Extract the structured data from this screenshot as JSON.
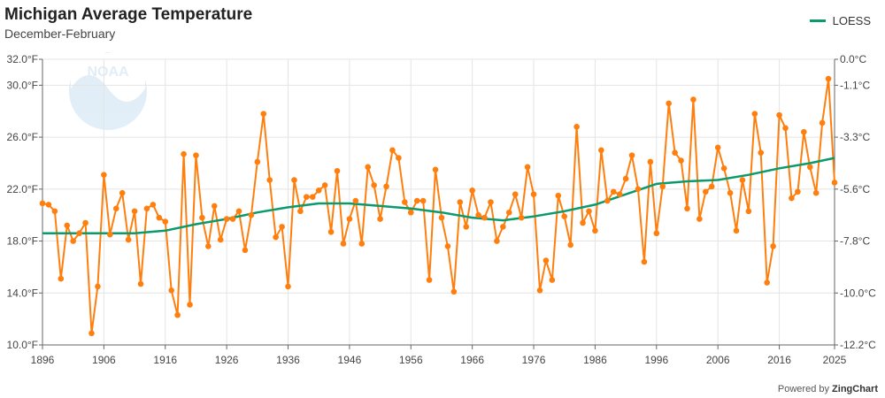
{
  "chart_data": {
    "type": "line",
    "title": "Michigan Average Temperature",
    "subtitle": "December-February",
    "legend": [
      "LOESS"
    ],
    "legend_placement": "top-right",
    "x_ticks": [
      "1896",
      "1906",
      "1916",
      "1926",
      "1936",
      "1946",
      "1956",
      "1966",
      "1976",
      "1986",
      "1996",
      "2006",
      "2016",
      "2025"
    ],
    "y_ticks_left": [
      "10.0°F",
      "14.0°F",
      "18.0°F",
      "22.0°F",
      "26.0°F",
      "30.0°F",
      "32.0°F"
    ],
    "y_ticks_right": [
      "-12.2°C",
      "-10.0°C",
      "-7.8°C",
      "-5.6°C",
      "-3.3°C",
      "-1.1°C",
      "0.0°C"
    ],
    "xlim": [
      1896,
      2025
    ],
    "ylim": [
      10,
      32
    ],
    "grid": true,
    "series": [
      {
        "color": "#ff7f0e",
        "x": [
          1896,
          1897,
          1898,
          1899,
          1900,
          1901,
          1902,
          1903,
          1904,
          1905,
          1906,
          1907,
          1908,
          1909,
          1910,
          1911,
          1912,
          1913,
          1914,
          1915,
          1916,
          1917,
          1918,
          1919,
          1920,
          1921,
          1922,
          1923,
          1924,
          1925,
          1926,
          1927,
          1928,
          1929,
          1930,
          1931,
          1932,
          1933,
          1934,
          1935,
          1936,
          1937,
          1938,
          1939,
          1940,
          1941,
          1942,
          1943,
          1944,
          1945,
          1946,
          1947,
          1948,
          1949,
          1950,
          1951,
          1952,
          1953,
          1954,
          1955,
          1956,
          1957,
          1958,
          1959,
          1960,
          1961,
          1962,
          1963,
          1964,
          1965,
          1966,
          1967,
          1968,
          1969,
          1970,
          1971,
          1972,
          1973,
          1974,
          1975,
          1976,
          1977,
          1978,
          1979,
          1980,
          1981,
          1982,
          1983,
          1984,
          1985,
          1986,
          1987,
          1988,
          1989,
          1990,
          1991,
          1992,
          1993,
          1994,
          1995,
          1996,
          1997,
          1998,
          1999,
          2000,
          2001,
          2002,
          2003,
          2004,
          2005,
          2006,
          2007,
          2008,
          2009,
          2010,
          2011,
          2012,
          2013,
          2014,
          2015,
          2016,
          2017,
          2018,
          2019,
          2020,
          2021,
          2022,
          2023,
          2024,
          2025
        ],
        "values": [
          20.9,
          20.8,
          20.3,
          15.1,
          19.2,
          18.0,
          18.6,
          19.4,
          10.9,
          14.5,
          23.1,
          18.5,
          20.5,
          21.7,
          18.1,
          20.3,
          14.7,
          20.5,
          20.8,
          19.8,
          19.5,
          14.2,
          12.3,
          24.7,
          13.1,
          24.6,
          19.8,
          17.6,
          20.7,
          18.1,
          19.7,
          19.7,
          20.3,
          17.3,
          20.0,
          24.1,
          27.8,
          22.7,
          18.3,
          19.1,
          14.5,
          22.7,
          20.3,
          21.4,
          21.4,
          21.9,
          22.3,
          18.7,
          23.4,
          17.8,
          19.7,
          21.1,
          17.8,
          23.7,
          22.3,
          19.7,
          22.2,
          25.0,
          24.4,
          21.0,
          20.2,
          21.1,
          21.1,
          15.0,
          23.5,
          19.8,
          17.6,
          14.1,
          21.0,
          19.1,
          21.9,
          20.0,
          19.8,
          21.0,
          18.0,
          19.1,
          20.2,
          21.6,
          19.8,
          23.7,
          21.6,
          14.2,
          16.5,
          15.0,
          21.5,
          19.9,
          17.7,
          26.8,
          19.4,
          20.3,
          18.8,
          25.0,
          21.1,
          21.8,
          21.6,
          22.8,
          24.6,
          22.0,
          16.4,
          24.1,
          18.6,
          22.2,
          28.6,
          24.8,
          24.2,
          20.5,
          28.9,
          19.7,
          21.8,
          22.2,
          25.2,
          23.6,
          21.7,
          18.8,
          22.7,
          20.3,
          27.8,
          24.8,
          14.8,
          17.6,
          27.7,
          26.7,
          21.3,
          21.8,
          26.4,
          23.7,
          21.7,
          27.1,
          30.5,
          22.5
        ]
      },
      {
        "name": "LOESS",
        "color": "#0a9a6c",
        "x": [
          1896,
          1906,
          1911,
          1916,
          1921,
          1926,
          1931,
          1936,
          1941,
          1946,
          1951,
          1956,
          1961,
          1966,
          1971,
          1976,
          1981,
          1986,
          1991,
          1996,
          2001,
          2006,
          2011,
          2016,
          2021,
          2025
        ],
        "values": [
          18.6,
          18.6,
          18.6,
          18.8,
          19.3,
          19.7,
          20.2,
          20.6,
          20.9,
          20.9,
          20.7,
          20.5,
          20.2,
          19.8,
          19.6,
          19.9,
          20.3,
          20.8,
          21.6,
          22.4,
          22.6,
          22.7,
          23.1,
          23.6,
          24.0,
          24.4
        ]
      }
    ]
  },
  "credit": {
    "prefix": "Powered by",
    "brand": "ZingChart"
  },
  "watermark": "NOAA"
}
